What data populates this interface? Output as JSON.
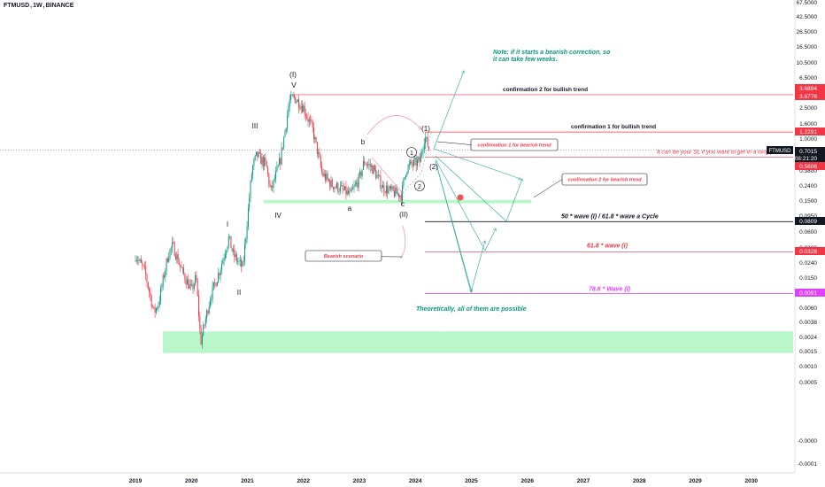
{
  "header": {
    "symbol": "FTMUSD",
    "timeframe": "1W",
    "exchange": "BINANCE",
    "separator": ","
  },
  "colors": {
    "bull": "#089981",
    "bear": "#f23645",
    "red_line": "#f23645",
    "black_line": "#131722",
    "purple_line": "#e040fb",
    "green_zone": "#b9f6ca",
    "note_green": "#089981",
    "arrow_green": "#26a69a",
    "wave_gray": "#787b86"
  },
  "chart_data": {
    "type": "candlestick",
    "y_scale": "log",
    "x_axis": {
      "ticks": [
        "2019",
        "2020",
        "2021",
        "2022",
        "2023",
        "2024",
        "2025",
        "2026",
        "2027",
        "2028",
        "2029",
        "2030"
      ]
    },
    "y_axis": {
      "ticks": [
        "67.5000",
        "42.5000",
        "26.5000",
        "16.5000",
        "10.5000",
        "6.5000",
        "4.0000",
        "2.5000",
        "1.6000",
        "1.0000",
        "0.6000",
        "0.3800",
        "0.2400",
        "0.1500",
        "0.0950",
        "0.0600",
        "0.0380",
        "0.0240",
        "0.0150",
        "0.0095",
        "0.0060",
        "0.0038",
        "0.0024",
        "0.0015",
        "0.0010",
        "0.0005",
        "0.0002",
        "-0.0001"
      ],
      "price_labels": [
        {
          "text": "3.6894",
          "color": "#f23645"
        },
        {
          "text": "3.6776",
          "color": "#f23645"
        },
        {
          "text": "1.2291",
          "color": "#f23645"
        },
        {
          "text": "FTMUSD",
          "color": "#131722"
        },
        {
          "text": "0.7015",
          "color": "#131722"
        },
        {
          "text": "08:21:20",
          "color": "#131722"
        },
        {
          "text": "0.5606",
          "color": "#f23645"
        },
        {
          "text": "0.0809",
          "color": "#131722"
        },
        {
          "text": "0.0328",
          "color": "#f23645"
        },
        {
          "text": "0.0091",
          "color": "#e040fb"
        }
      ]
    },
    "series": [
      {
        "kind": "ohlc_path",
        "points": [
          {
            "t": "2019-01",
            "p": 0.03
          },
          {
            "t": "2019-03",
            "p": 0.018
          },
          {
            "t": "2019-05",
            "p": 0.005
          },
          {
            "t": "2019-06",
            "p": 0.007
          },
          {
            "t": "2019-08",
            "p": 0.03
          },
          {
            "t": "2019-09",
            "p": 0.04
          },
          {
            "t": "2019-11",
            "p": 0.018
          },
          {
            "t": "2020-01",
            "p": 0.01
          },
          {
            "t": "2020-02",
            "p": 0.015
          },
          {
            "t": "2020-03",
            "p": 0.002
          },
          {
            "t": "2020-05",
            "p": 0.008
          },
          {
            "t": "2020-07",
            "p": 0.018
          },
          {
            "t": "2020-09",
            "p": 0.05
          },
          {
            "t": "2020-10",
            "p": 0.03
          },
          {
            "t": "2020-12",
            "p": 0.02
          },
          {
            "t": "2021-02",
            "p": 0.4
          },
          {
            "t": "2021-03",
            "p": 0.6
          },
          {
            "t": "2021-05",
            "p": 0.45
          },
          {
            "t": "2021-06",
            "p": 0.2
          },
          {
            "t": "2021-08",
            "p": 0.5
          },
          {
            "t": "2021-10",
            "p": 3.0
          },
          {
            "t": "2021-11",
            "p": 3.4
          },
          {
            "t": "2022-01",
            "p": 2.5
          },
          {
            "t": "2022-03",
            "p": 1.3
          },
          {
            "t": "2022-05",
            "p": 0.35
          },
          {
            "t": "2022-07",
            "p": 0.25
          },
          {
            "t": "2022-09",
            "p": 0.22
          },
          {
            "t": "2022-11",
            "p": 0.18
          },
          {
            "t": "2023-01",
            "p": 0.3
          },
          {
            "t": "2023-02",
            "p": 0.5
          },
          {
            "t": "2023-04",
            "p": 0.4
          },
          {
            "t": "2023-06",
            "p": 0.23
          },
          {
            "t": "2023-08",
            "p": 0.2
          },
          {
            "t": "2023-10",
            "p": 0.18
          },
          {
            "t": "2023-11",
            "p": 0.4
          },
          {
            "t": "2023-12",
            "p": 0.45
          },
          {
            "t": "2024-02",
            "p": 0.5
          },
          {
            "t": "2024-03",
            "p": 1.1
          },
          {
            "t": "2024-04",
            "p": 0.7015
          }
        ]
      }
    ],
    "horizontal_levels": [
      {
        "price": 3.6894,
        "color": "#f23645",
        "label": "confirmation 2 for bullish trend"
      },
      {
        "price": 1.2291,
        "color": "#f23645",
        "label": "confirmation 1 for bullish trend"
      },
      {
        "price": 0.5606,
        "color": "#f23645",
        "label": "It can be your SL if you want to get in a long position"
      },
      {
        "price": 0.0809,
        "color": "#131722",
        "label": "50 * wave (I) / 61.8 * wave a Cycle"
      },
      {
        "price": 0.0328,
        "color": "#f23645",
        "label": "61.8 * wave (I)"
      },
      {
        "price": 0.0091,
        "color": "#e040fb",
        "label": "78.6 * Wave (I)"
      }
    ],
    "zones": [
      {
        "name": "support-zone-upper",
        "price_low": 0.14,
        "price_high": 0.155
      },
      {
        "name": "support-zone-lower",
        "price_low": 0.0016,
        "price_high": 0.0028
      }
    ],
    "wave_labels": [
      "(I)",
      "V",
      "III",
      "I",
      "II",
      "IV",
      "b",
      "a",
      "c",
      "(II)",
      "(1)",
      "(2)",
      "1",
      "2"
    ],
    "callouts": [
      "confirmation 1 for bearish trend",
      "confirmation 2 for bearish trend",
      "Bearish scenario"
    ],
    "notes": [
      "Note: if it starts a bearish correction, so",
      "it can take few weeks.",
      "Theoretically, all of them are possible"
    ]
  }
}
